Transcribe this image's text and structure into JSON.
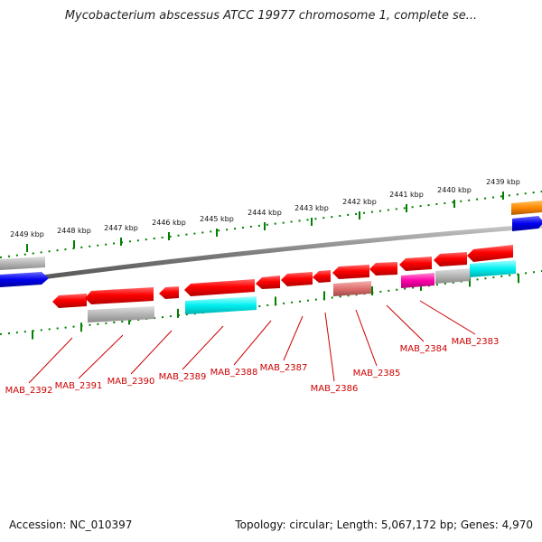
{
  "title": "Mycobacterium abscessus ATCC 19977 chromosome 1, complete se...",
  "footer": {
    "accession": "Accession: NC_010397",
    "summary": "Topology: circular; Length: 5,067,172 bp; Genes: 4,970"
  },
  "ticks": [
    "2449 kbp",
    "2448 kbp",
    "2447 kbp",
    "2446 kbp",
    "2445 kbp",
    "2444 kbp",
    "2443 kbp",
    "2442 kbp",
    "2441 kbp",
    "2440 kbp",
    "2439 kbp"
  ],
  "gene_labels": [
    "MAB_2392",
    "MAB_2391",
    "MAB_2390",
    "MAB_2389",
    "MAB_2388",
    "MAB_2387",
    "MAB_2386",
    "MAB_2385",
    "MAB_2384",
    "MAB_2383"
  ],
  "colors": {
    "gene_red": "#ff0000",
    "backbone": "#7a7a7a",
    "tick_green": "#008000",
    "label_red": "#cc0000",
    "cyan": "#00ffff",
    "magenta": "#ff00aa",
    "grey": "#b0b0b0",
    "blue": "#0000ff",
    "orange": "#ff8800",
    "pink": "#e07070"
  }
}
